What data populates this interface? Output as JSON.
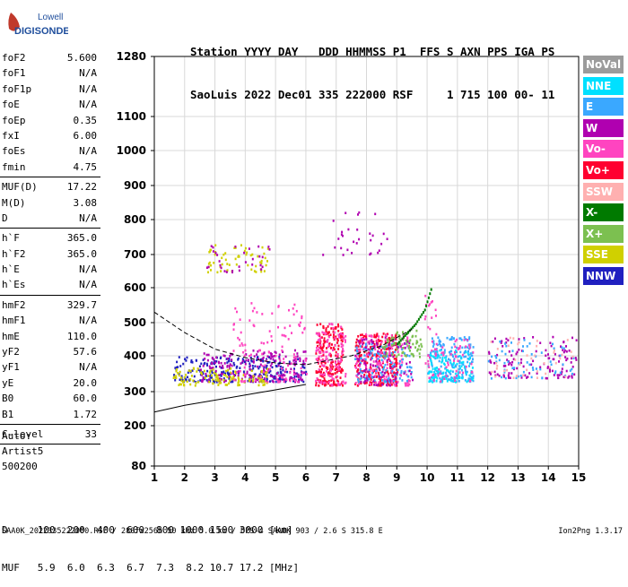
{
  "logo": {
    "line1": "Lowell",
    "line2": "DIGISONDE"
  },
  "header": {
    "labels": "Station YYYY DAY   DDD HHMMSS P1  FFS S AXN PPS IGA PS",
    "values": "SaoLuis 2022 Dec01 335 222000 RSF     1 715 100 00- 11"
  },
  "params": {
    "group1": [
      {
        "k": "foF2",
        "v": "5.600"
      },
      {
        "k": "foF1",
        "v": "N/A"
      },
      {
        "k": "foF1p",
        "v": "N/A"
      },
      {
        "k": "foE",
        "v": "N/A"
      },
      {
        "k": "foEp",
        "v": "0.35"
      },
      {
        "k": "fxI",
        "v": "6.00"
      },
      {
        "k": "foEs",
        "v": "N/A"
      },
      {
        "k": "fmin",
        "v": "4.75"
      }
    ],
    "group2": [
      {
        "k": "MUF(D)",
        "v": "17.22"
      },
      {
        "k": "M(D)",
        "v": "3.08"
      },
      {
        "k": "D",
        "v": "N/A"
      }
    ],
    "group3": [
      {
        "k": "h`F",
        "v": "365.0"
      },
      {
        "k": "h`F2",
        "v": "365.0"
      },
      {
        "k": "h`E",
        "v": "N/A"
      },
      {
        "k": "h`Es",
        "v": "N/A"
      }
    ],
    "group4": [
      {
        "k": "hmF2",
        "v": "329.7"
      },
      {
        "k": "hmF1",
        "v": "N/A"
      },
      {
        "k": "hmE",
        "v": "110.0"
      },
      {
        "k": "yF2",
        "v": "57.6"
      },
      {
        "k": "yF1",
        "v": "N/A"
      },
      {
        "k": "yE",
        "v": "20.0"
      },
      {
        "k": "B0",
        "v": "60.0"
      },
      {
        "k": "B1",
        "v": "1.72"
      }
    ],
    "group5": [
      {
        "k": "C-level",
        "v": "33"
      }
    ]
  },
  "auto": {
    "line1": "Auto:",
    "line2": "Artist5",
    "line3": "500200"
  },
  "legend": [
    {
      "label": "NoVal",
      "color": "#9b9b9b"
    },
    {
      "label": "NNE",
      "color": "#00e0ff"
    },
    {
      "label": "E",
      "color": "#3aa8ff"
    },
    {
      "label": "W",
      "color": "#b000b0"
    },
    {
      "label": "Vo-",
      "color": "#ff44c0"
    },
    {
      "label": "Vo+",
      "color": "#ff0030"
    },
    {
      "label": "SSW",
      "color": "#ffb0b0"
    },
    {
      "label": "X-",
      "color": "#007a00"
    },
    {
      "label": "X+",
      "color": "#7cc050"
    },
    {
      "label": "SSE",
      "color": "#d0d000"
    },
    {
      "label": "NNW",
      "color": "#2020c0"
    }
  ],
  "bottom": {
    "line1": "D     100  200  400  600  800 1000 1500 3000 [km]",
    "line2": "MUF   5.9  6.0  6.3  6.7  7.3  8.2 10.7 17.2 [MHz]"
  },
  "footer": {
    "left": "SAA0K_2022335222000.RSF / 280fx256h 50 kHz 5.0 km / DPS-4 SAA0K 903 / 2.6 S 315.8 E",
    "right": "Ion2Png 1.3.17"
  },
  "chart_data": {
    "type": "scatter",
    "xlim": [
      1,
      15
    ],
    "ylim": [
      80,
      1280
    ],
    "x_ticks": [
      "1",
      "2",
      "3",
      "4",
      "5",
      "6",
      "7",
      "8",
      "9",
      "10",
      "11",
      "12",
      "13",
      "14",
      "15"
    ],
    "y_ticks": [
      "80",
      "200",
      "300",
      "400",
      "500",
      "600",
      "700",
      "800",
      "900",
      "1000",
      "1100",
      "1280"
    ],
    "grid": true,
    "clusters": [
      {
        "color": "#2020c0",
        "x": [
          1.6,
          6.0
        ],
        "y": [
          330,
          400
        ],
        "n": 260
      },
      {
        "color": "#b000b0",
        "x": [
          2.5,
          6.0
        ],
        "y": [
          330,
          420
        ],
        "n": 200
      },
      {
        "color": "#d0d000",
        "x": [
          1.6,
          4.8
        ],
        "y": [
          320,
          370
        ],
        "n": 120
      },
      {
        "color": "#ff44c0",
        "x": [
          3.5,
          6.0
        ],
        "y": [
          330,
          560
        ],
        "n": 120
      },
      {
        "color": "#ff0030",
        "x": [
          6.3,
          7.2
        ],
        "y": [
          320,
          500
        ],
        "n": 220
      },
      {
        "color": "#ff44c0",
        "x": [
          6.3,
          7.3
        ],
        "y": [
          320,
          500
        ],
        "n": 120
      },
      {
        "color": "#ff0030",
        "x": [
          7.6,
          9.0
        ],
        "y": [
          320,
          470
        ],
        "n": 260
      },
      {
        "color": "#ff44c0",
        "x": [
          7.6,
          9.4
        ],
        "y": [
          320,
          470
        ],
        "n": 140
      },
      {
        "color": "#3aa8ff",
        "x": [
          7.6,
          9.5
        ],
        "y": [
          330,
          440
        ],
        "n": 120
      },
      {
        "color": "#b000b0",
        "x": [
          7.6,
          9.5
        ],
        "y": [
          320,
          460
        ],
        "n": 100
      },
      {
        "color": "#3aa8ff",
        "x": [
          10.0,
          11.5
        ],
        "y": [
          330,
          460
        ],
        "n": 180
      },
      {
        "color": "#00e0ff",
        "x": [
          10.0,
          11.5
        ],
        "y": [
          330,
          420
        ],
        "n": 120
      },
      {
        "color": "#ff44c0",
        "x": [
          10.0,
          11.5
        ],
        "y": [
          330,
          460
        ],
        "n": 60
      },
      {
        "color": "#b000b0",
        "x": [
          12.0,
          14.9
        ],
        "y": [
          340,
          460
        ],
        "n": 120
      },
      {
        "color": "#3aa8ff",
        "x": [
          12.0,
          14.9
        ],
        "y": [
          340,
          460
        ],
        "n": 60
      },
      {
        "color": "#ffb0b0",
        "x": [
          12.0,
          14.9
        ],
        "y": [
          340,
          460
        ],
        "n": 40
      },
      {
        "color": "#7cc050",
        "x": [
          8.5,
          9.8
        ],
        "y": [
          400,
          480
        ],
        "n": 70
      },
      {
        "color": "#d0d000",
        "x": [
          2.7,
          4.8
        ],
        "y": [
          650,
          730
        ],
        "n": 60
      },
      {
        "color": "#b000b0",
        "x": [
          2.7,
          4.8
        ],
        "y": [
          650,
          730
        ],
        "n": 30
      },
      {
        "color": "#b000b0",
        "x": [
          6.5,
          8.7
        ],
        "y": [
          700,
          830
        ],
        "n": 30
      },
      {
        "color": "#ff44c0",
        "x": [
          9.9,
          10.3
        ],
        "y": [
          380,
          580
        ],
        "n": 20
      }
    ],
    "x_mode_trace": [
      [
        9.0,
        440
      ],
      [
        9.3,
        470
      ],
      [
        9.6,
        500
      ],
      [
        9.9,
        540
      ],
      [
        10.15,
        610
      ]
    ],
    "dashed_curve": [
      [
        1,
        530
      ],
      [
        2,
        470
      ],
      [
        3,
        420
      ],
      [
        4,
        395
      ],
      [
        5,
        380
      ],
      [
        6,
        375
      ],
      [
        7.5,
        400
      ],
      [
        8.5,
        430
      ],
      [
        9.5,
        480
      ]
    ],
    "solid_curve": [
      [
        1,
        240
      ],
      [
        2,
        260
      ],
      [
        3,
        275
      ],
      [
        4,
        290
      ],
      [
        5,
        305
      ],
      [
        6,
        320
      ]
    ]
  }
}
